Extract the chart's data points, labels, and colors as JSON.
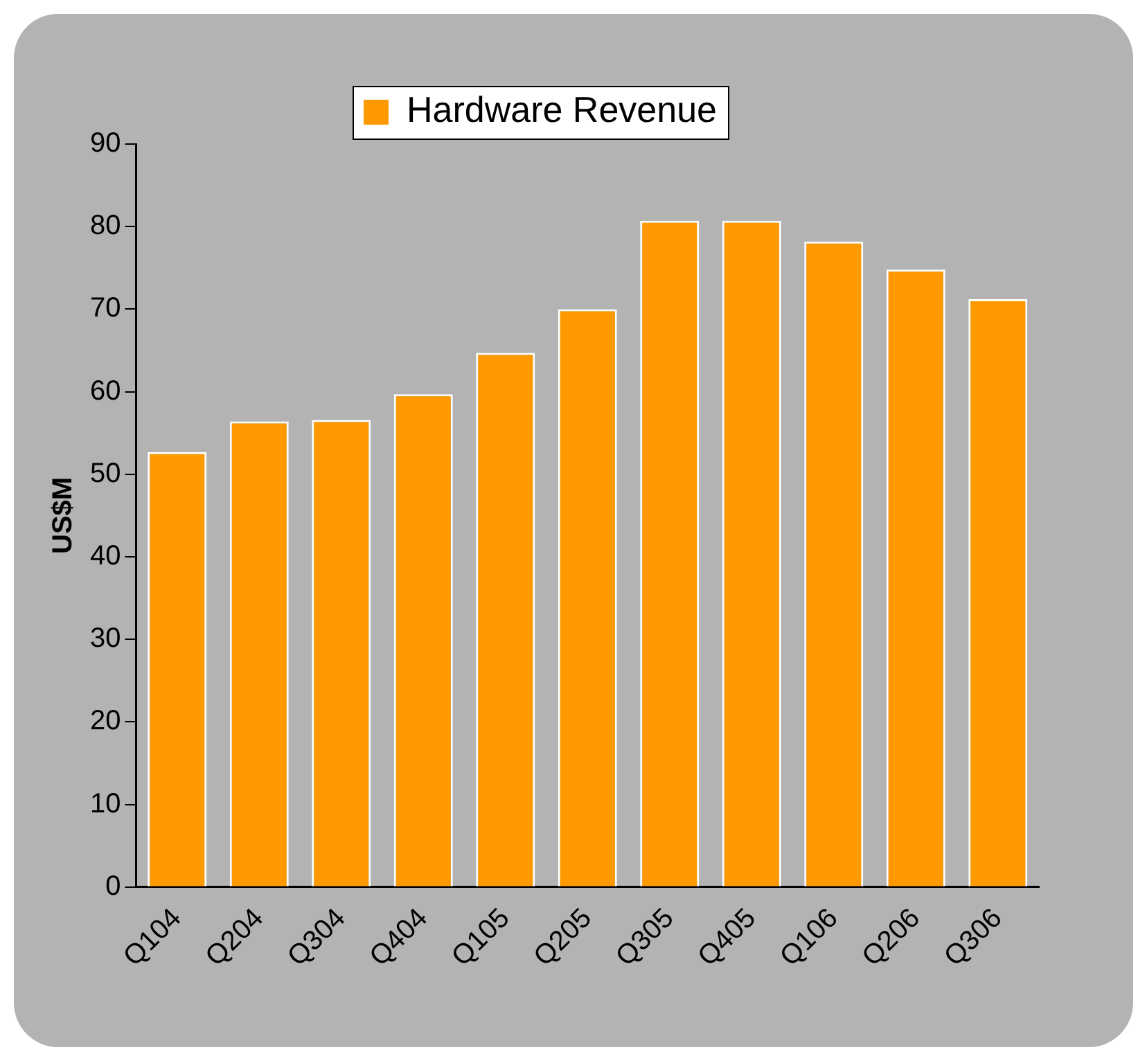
{
  "chart_data": {
    "type": "bar",
    "ylabel": "US$M",
    "categories": [
      "Q104",
      "Q204",
      "Q304",
      "Q404",
      "Q105",
      "Q205",
      "Q305",
      "Q405",
      "Q106",
      "Q206",
      "Q306"
    ],
    "series": [
      {
        "name": "Hardware Revenue",
        "color": "#ff9900",
        "values": [
          52.7,
          56.4,
          56.6,
          59.7,
          64.7,
          70.0,
          80.7,
          80.7,
          78.2,
          74.8,
          71.2
        ]
      }
    ],
    "ylim": [
      0,
      90
    ],
    "yticks": [
      0,
      10,
      20,
      30,
      40,
      50,
      60,
      70,
      80,
      90
    ],
    "grid": false,
    "legend": "top"
  }
}
